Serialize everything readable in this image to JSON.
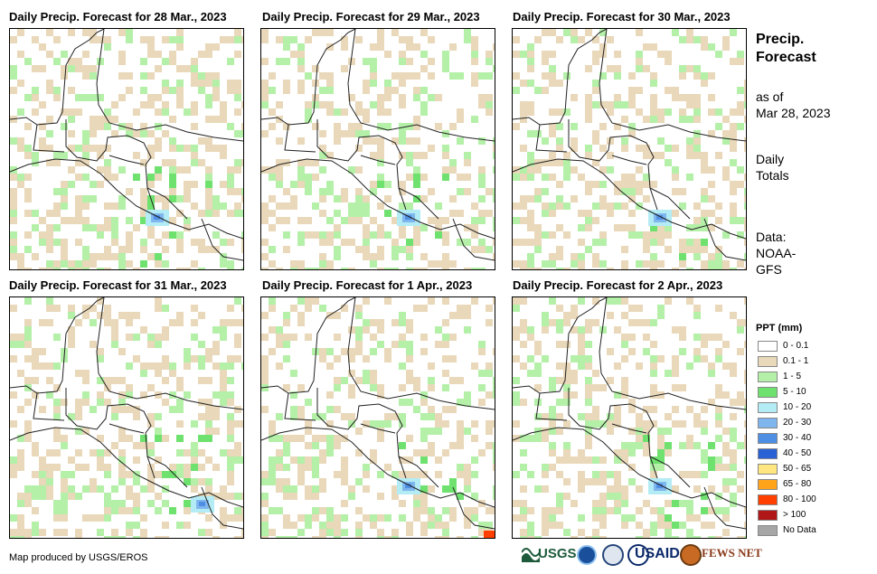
{
  "panels": [
    {
      "title": "Daily Precip. Forecast for 28 Mar., 2023"
    },
    {
      "title": "Daily Precip. Forecast for 29 Mar., 2023"
    },
    {
      "title": "Daily Precip. Forecast for 30 Mar., 2023"
    },
    {
      "title": "Daily Precip. Forecast for 31 Mar., 2023"
    },
    {
      "title": "Daily Precip. Forecast for 1 Apr., 2023"
    },
    {
      "title": "Daily Precip. Forecast for 2 Apr., 2023"
    }
  ],
  "sidebar": {
    "title_line1": "Precip.",
    "title_line2": "Forecast",
    "asof_line1": "as of",
    "asof_line2": "Mar 28, 2023",
    "daily_line1": "Daily",
    "daily_line2": "Totals",
    "data_line1": "Data:",
    "data_line2": "NOAA-",
    "data_line3": "GFS"
  },
  "legend": {
    "title": "PPT (mm)",
    "items": [
      {
        "label": "0 - 0.1",
        "color": "#ffffff"
      },
      {
        "label": "0.1 - 1",
        "color": "#e9d8b9"
      },
      {
        "label": "1 - 5",
        "color": "#b4f0a8"
      },
      {
        "label": "5 - 10",
        "color": "#6fe16f"
      },
      {
        "label": "10 - 20",
        "color": "#b3ecf5"
      },
      {
        "label": "20 - 30",
        "color": "#7fb6ee"
      },
      {
        "label": "30 - 40",
        "color": "#4f8fe3"
      },
      {
        "label": "40 - 50",
        "color": "#2a62d6"
      },
      {
        "label": "50 - 65",
        "color": "#ffe680"
      },
      {
        "label": "65 - 80",
        "color": "#ffa31a"
      },
      {
        "label": "80 - 100",
        "color": "#ff4000"
      },
      {
        "label": "> 100",
        "color": "#b01818"
      },
      {
        "label": "No Data",
        "color": "#a6a6a6"
      }
    ]
  },
  "footer": {
    "credit": "Map produced by USGS/EROS",
    "logo_usgs": "USGS",
    "logo_usaid": "USAID",
    "logo_fews": "FEWS NET"
  }
}
